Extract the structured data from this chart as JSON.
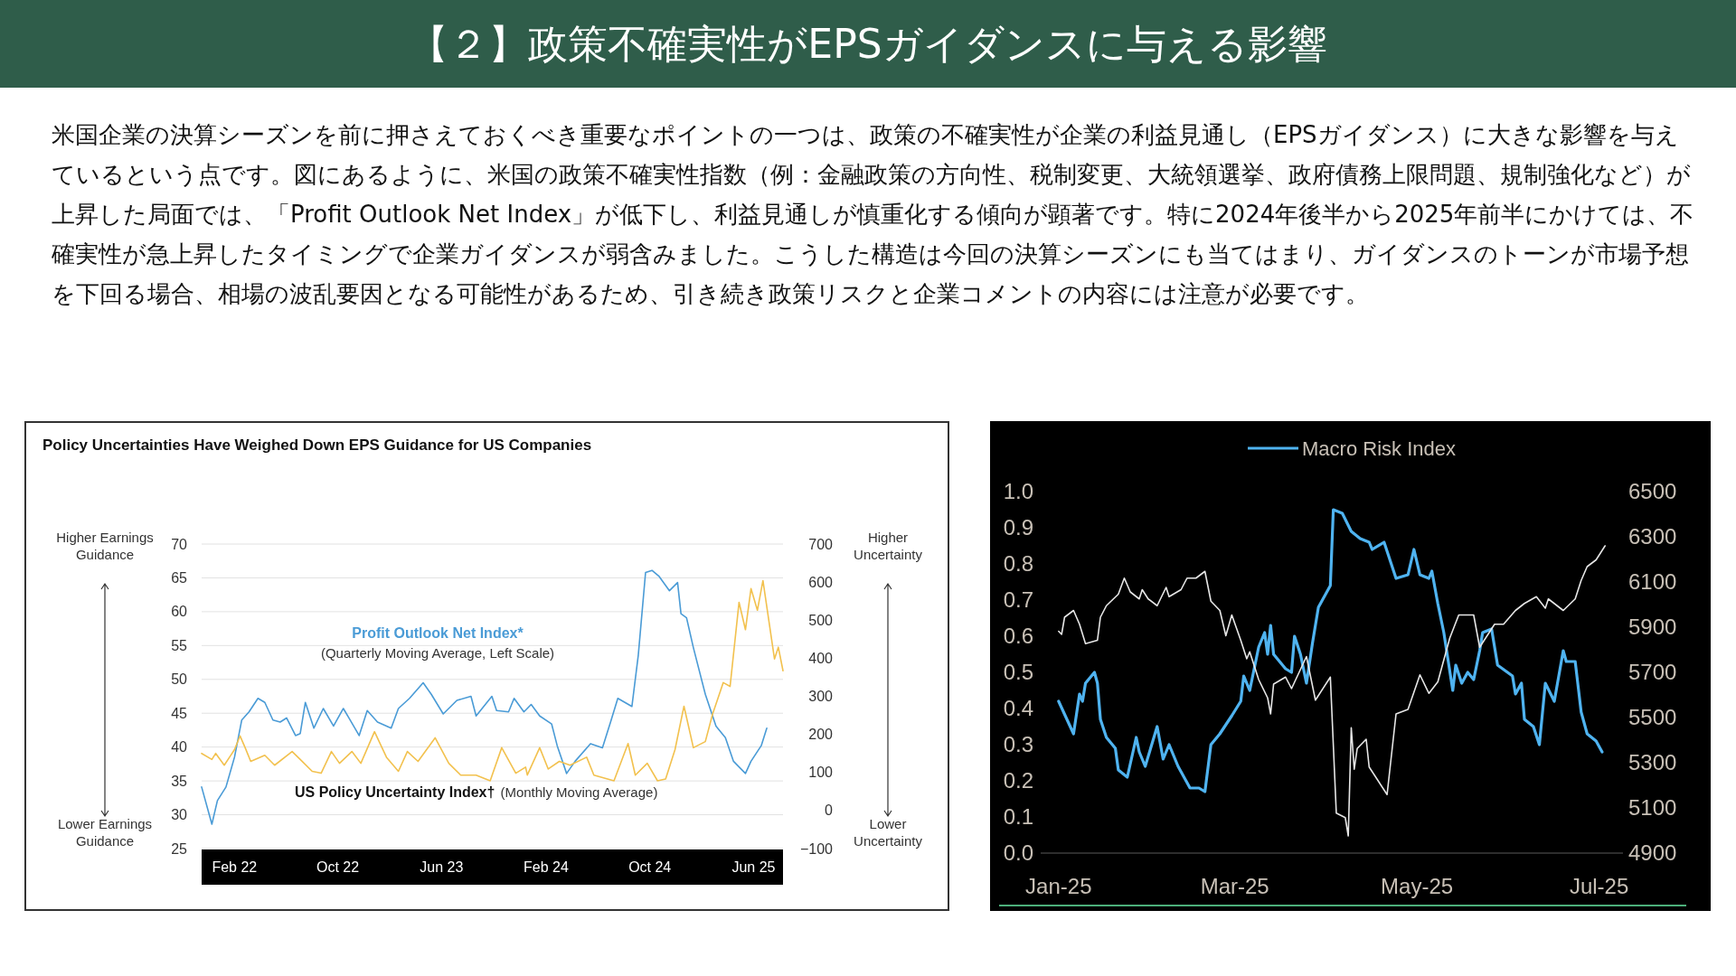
{
  "chart_data": [
    {
      "type": "other",
      "title": "【２】政策不確実性がEPSガイダンスに与える影響",
      "annotations": [
        "米国企業の決算シーズンを前に押さえておくべき重要なポイントの一つは、政策の不確実性が企業の利益見通し（EPSガイダンス）に大きな影響を与えているという点です。図にあるように、米国の政策不確実性指数（例：金融政策の方向性、税制変更、大統領選挙、政府債務上限問題、規制強化など）が上昇した局面では、「Profit Outlook Net Index」が低下し、利益見通しが慎重化する傾向が顕著です。特に2024年後半から2025年前半にかけては、不確実性が急上昇したタイミングで企業ガイダンスが弱含みました。こうした構造は今回の決算シーズンにも当てはまり、ガイダンスのトーンが市場予想を下回る場合、相場の波乱要因となる可能性があるため、引き続き政策リスクと企業コメントの内容には注意が必要です。"
      ]
    },
    {
      "type": "line",
      "title": "Policy Uncertainties Have Weighed Down EPS Guidance for US Companies",
      "xlim": [
        "2021-11-16",
        "2025-08-09"
      ],
      "xticks": [
        {
          "value": "2022-02",
          "label": "Feb 22"
        },
        {
          "value": "2022-10",
          "label": "Oct 22"
        },
        {
          "value": "2023-06",
          "label": "Jun 23"
        },
        {
          "value": "2024-02",
          "label": "Feb 24"
        },
        {
          "value": "2024-10",
          "label": "Oct 24"
        },
        {
          "value": "2025-06",
          "label": "Jun 25"
        }
      ],
      "ylim": [
        25,
        70
      ],
      "yticks": [
        25,
        30,
        35,
        40,
        45,
        50,
        55,
        60,
        65,
        70
      ],
      "y2lim": [
        -100,
        700
      ],
      "y2ticks": [
        {
          "value": -100,
          "label": "−100"
        },
        0,
        100,
        200,
        300,
        400,
        500,
        600,
        700
      ],
      "grid": "y",
      "legend": false,
      "annotations": [
        "(Quarterly Moving Average, Left Scale)",
        "(Monthly Moving Average)",
        "Higher Earnings Guidance",
        "Lower Earnings Guidance",
        "Higher Uncertainty",
        "Lower Uncertainty"
      ],
      "series": [
        {
          "name": "Profit Outlook Net Index*",
          "color": "#4a9bd6",
          "x": [
            "2021-11-16",
            "2021-12-10",
            "2021-12-23",
            "2022-01-12",
            "2022-02-01",
            "2022-02-18",
            "2022-03-07",
            "2022-03-28",
            "2022-04-13",
            "2022-05-02",
            "2022-05-19",
            "2022-06-03",
            "2022-06-24",
            "2022-07-05",
            "2022-07-17",
            "2022-08-06",
            "2022-08-28",
            "2022-09-21",
            "2022-10-14",
            "2022-10-27",
            "2022-11-20",
            "2022-12-09",
            "2023-01-02",
            "2023-02-03",
            "2023-02-20",
            "2023-03-18",
            "2023-04-19",
            "2023-05-08",
            "2023-06-05",
            "2023-07-07",
            "2023-08-09",
            "2023-08-21",
            "2023-09-27",
            "2023-10-08",
            "2023-11-05",
            "2023-11-18",
            "2023-12-11",
            "2023-12-28",
            "2024-01-17",
            "2024-02-14",
            "2024-02-27",
            "2024-03-20",
            "2024-04-09",
            "2024-05-15",
            "2024-06-12",
            "2024-07-01",
            "2024-07-18",
            "2024-08-20",
            "2024-09-04",
            "2024-09-21",
            "2024-10-06",
            "2024-10-23",
            "2024-11-16",
            "2024-12-05",
            "2024-12-13",
            "2024-12-26",
            "2025-01-11",
            "2025-02-08",
            "2025-03-05",
            "2025-03-27",
            "2025-04-15",
            "2025-05-13",
            "2025-05-26",
            "2025-06-19",
            "2025-07-02"
          ],
          "values": [
            34.1,
            28.6,
            32.1,
            34.1,
            38.5,
            44.0,
            45.2,
            47.2,
            46.6,
            44.0,
            43.7,
            44.3,
            41.7,
            42.0,
            46.6,
            42.8,
            45.7,
            43.1,
            45.7,
            44.3,
            41.7,
            45.4,
            43.7,
            42.8,
            45.7,
            47.2,
            49.5,
            47.8,
            44.9,
            46.9,
            47.5,
            44.6,
            47.5,
            45.4,
            45.2,
            47.2,
            45.2,
            46.3,
            44.6,
            43.4,
            40.2,
            36.1,
            37.9,
            40.5,
            39.9,
            43.7,
            47.2,
            46.0,
            53.6,
            65.8,
            66.1,
            65.2,
            63.1,
            64.3,
            59.7,
            59.1,
            54.7,
            47.8,
            43.1,
            41.4,
            37.9,
            36.1,
            37.9,
            40.2,
            42.8
          ]
        },
        {
          "name": "US Policy Uncertainty Index†",
          "color": "#f2c14e",
          "axis": "y2",
          "x": [
            "2021-11-16",
            "2021-12-10",
            "2021-12-19",
            "2022-01-08",
            "2022-02-01",
            "2022-02-14",
            "2022-02-26",
            "2022-03-11",
            "2022-04-13",
            "2022-05-06",
            "2022-06-16",
            "2022-07-05",
            "2022-08-02",
            "2022-08-23",
            "2022-09-16",
            "2022-10-05",
            "2022-11-03",
            "2022-11-24",
            "2022-12-26",
            "2023-01-23",
            "2023-02-20",
            "2023-03-13",
            "2023-04-07",
            "2023-05-17",
            "2023-06-18",
            "2023-07-16",
            "2023-08-21",
            "2023-09-23",
            "2023-10-20",
            "2023-11-22",
            "2023-12-15",
            "2023-12-19",
            "2024-01-17",
            "2024-02-06",
            "2024-03-03",
            "2024-03-28",
            "2024-05-06",
            "2024-05-23",
            "2024-07-09",
            "2024-08-11",
            "2024-08-28",
            "2024-09-25",
            "2024-10-19",
            "2024-11-07",
            "2024-11-29",
            "2024-12-20",
            "2025-01-11",
            "2025-02-08",
            "2025-02-25",
            "2025-03-22",
            "2025-04-07",
            "2025-04-28",
            "2025-05-13",
            "2025-05-26",
            "2025-06-10",
            "2025-06-23",
            "2025-07-20",
            "2025-07-29",
            "2025-08-09"
          ],
          "values": [
            150,
            134,
            150,
            119,
            160,
            196,
            165,
            129,
            145,
            119,
            155,
            134,
            103,
            98,
            155,
            124,
            155,
            124,
            207,
            140,
            103,
            155,
            129,
            191,
            124,
            93,
            93,
            78,
            165,
            98,
            114,
            93,
            165,
            109,
            129,
            119,
            140,
            93,
            78,
            176,
            93,
            124,
            78,
            83,
            160,
            274,
            165,
            181,
            253,
            336,
            326,
            547,
            475,
            583,
            526,
            604,
            398,
            429,
            367
          ]
        }
      ]
    },
    {
      "type": "line",
      "xlim": [
        "2024-12-26",
        "2025-07-09"
      ],
      "xticks": [
        {
          "value": "2025-01",
          "label": "Jan-25"
        },
        {
          "value": "2025-03",
          "label": "Mar-25"
        },
        {
          "value": "2025-05",
          "label": "May-25"
        },
        {
          "value": "2025-07",
          "label": "Jul-25"
        }
      ],
      "ylim": [
        0,
        1
      ],
      "yticks": [
        {
          "value": 0,
          "label": "0.0"
        },
        {
          "value": 0.1,
          "label": "0.1"
        },
        {
          "value": 0.2,
          "label": "0.2"
        },
        {
          "value": 0.3,
          "label": "0.3"
        },
        {
          "value": 0.4,
          "label": "0.4"
        },
        {
          "value": 0.5,
          "label": "0.5"
        },
        {
          "value": 0.6,
          "label": "0.6"
        },
        {
          "value": 0.7,
          "label": "0.7"
        },
        {
          "value": 0.8,
          "label": "0.8"
        },
        {
          "value": 0.9,
          "label": "0.9"
        },
        {
          "value": 1,
          "label": "1.0"
        }
      ],
      "y2lim": [
        4900,
        6500
      ],
      "y2ticks": [
        4900,
        5100,
        5300,
        5500,
        5700,
        5900,
        6100,
        6300,
        6500
      ],
      "legend": "top",
      "series": [
        {
          "name": "Macro Risk Index",
          "color": "#4fb3f0",
          "x": [
            "2025-01-01",
            "2025-01-06",
            "2025-01-08",
            "2025-01-09",
            "2025-01-10",
            "2025-01-13",
            "2025-01-14",
            "2025-01-15",
            "2025-01-17",
            "2025-01-20",
            "2025-01-21",
            "2025-01-24",
            "2025-01-27",
            "2025-01-28",
            "2025-01-30",
            "2025-02-03",
            "2025-02-05",
            "2025-02-07",
            "2025-02-10",
            "2025-02-14",
            "2025-02-17",
            "2025-02-19",
            "2025-02-21",
            "2025-02-24",
            "2025-02-28",
            "2025-03-03",
            "2025-03-04",
            "2025-03-06",
            "2025-03-09",
            "2025-03-11",
            "2025-03-12",
            "2025-03-13",
            "2025-03-14",
            "2025-03-18",
            "2025-03-20",
            "2025-03-21",
            "2025-03-23",
            "2025-03-25",
            "2025-03-27",
            "2025-03-29",
            "2025-04-02",
            "2025-04-03",
            "2025-04-06",
            "2025-04-09",
            "2025-04-12",
            "2025-04-15",
            "2025-04-16",
            "2025-04-20",
            "2025-04-22",
            "2025-04-24",
            "2025-04-28",
            "2025-04-30",
            "2025-05-02",
            "2025-05-05",
            "2025-05-06",
            "2025-05-08",
            "2025-05-10",
            "2025-05-13",
            "2025-05-14",
            "2025-05-16",
            "2025-05-18",
            "2025-05-20",
            "2025-05-22",
            "2025-05-23",
            "2025-05-26",
            "2025-05-28",
            "2025-06-02",
            "2025-06-03",
            "2025-06-05",
            "2025-06-06",
            "2025-06-09",
            "2025-06-11",
            "2025-06-13",
            "2025-06-16",
            "2025-06-19",
            "2025-06-20",
            "2025-06-23",
            "2025-06-25",
            "2025-06-27",
            "2025-06-30",
            "2025-07-02"
          ],
          "values": [
            0.42,
            0.33,
            0.44,
            0.42,
            0.47,
            0.5,
            0.47,
            0.37,
            0.32,
            0.29,
            0.23,
            0.21,
            0.32,
            0.28,
            0.24,
            0.35,
            0.26,
            0.3,
            0.24,
            0.18,
            0.18,
            0.17,
            0.3,
            0.33,
            0.38,
            0.42,
            0.49,
            0.45,
            0.57,
            0.61,
            0.55,
            0.63,
            0.55,
            0.51,
            0.5,
            0.6,
            0.55,
            0.47,
            0.58,
            0.68,
            0.74,
            0.95,
            0.94,
            0.89,
            0.87,
            0.86,
            0.84,
            0.86,
            0.81,
            0.76,
            0.77,
            0.84,
            0.77,
            0.76,
            0.78,
            0.69,
            0.61,
            0.45,
            0.52,
            0.47,
            0.5,
            0.48,
            0.56,
            0.61,
            0.62,
            0.52,
            0.49,
            0.44,
            0.47,
            0.37,
            0.35,
            0.3,
            0.47,
            0.42,
            0.56,
            0.53,
            0.53,
            0.39,
            0.33,
            0.31,
            0.28
          ]
        },
        {
          "color": "#e6e6e6",
          "axis": "y2",
          "x": [
            "2025-01-01",
            "2025-01-02",
            "2025-01-03",
            "2025-01-06",
            "2025-01-08",
            "2025-01-10",
            "2025-01-14",
            "2025-01-15",
            "2025-01-17",
            "2025-01-21",
            "2025-01-23",
            "2025-01-25",
            "2025-01-28",
            "2025-01-29",
            "2025-01-31",
            "2025-02-03",
            "2025-02-06",
            "2025-02-07",
            "2025-02-11",
            "2025-02-13",
            "2025-02-16",
            "2025-02-19",
            "2025-02-21",
            "2025-02-24",
            "2025-02-26",
            "2025-02-28",
            "2025-03-03",
            "2025-03-05",
            "2025-03-06",
            "2025-03-09",
            "2025-03-12",
            "2025-03-13",
            "2025-03-14",
            "2025-03-18",
            "2025-03-20",
            "2025-03-25",
            "2025-03-28",
            "2025-04-02",
            "2025-04-04",
            "2025-04-07",
            "2025-04-08",
            "2025-04-09",
            "2025-04-10",
            "2025-04-11",
            "2025-04-14",
            "2025-04-15",
            "2025-04-21",
            "2025-04-24",
            "2025-04-28",
            "2025-05-02",
            "2025-05-05",
            "2025-05-08",
            "2025-05-12",
            "2025-05-15",
            "2025-05-20",
            "2025-05-22",
            "2025-05-27",
            "2025-05-30",
            "2025-06-03",
            "2025-06-06",
            "2025-06-10",
            "2025-06-13",
            "2025-06-14",
            "2025-06-19",
            "2025-06-23",
            "2025-06-25",
            "2025-06-27",
            "2025-06-30",
            "2025-07-03"
          ],
          "values": [
            5882,
            5868,
            5944,
            5974,
            5913,
            5827,
            5842,
            5944,
            5995,
            6046,
            6117,
            6056,
            6025,
            6066,
            6025,
            5995,
            6076,
            6035,
            6066,
            6117,
            6117,
            6147,
            6015,
            5974,
            5862,
            5954,
            5842,
            5760,
            5791,
            5668,
            5587,
            5516,
            5648,
            5679,
            5628,
            5770,
            5577,
            5679,
            5077,
            5057,
            4976,
            5455,
            5271,
            5363,
            5404,
            5281,
            5159,
            5516,
            5536,
            5689,
            5607,
            5658,
            5852,
            5954,
            5954,
            5811,
            5913,
            5913,
            5974,
            6005,
            6035,
            5984,
            6025,
            5974,
            6025,
            6107,
            6168,
            6198,
            6260
          ]
        }
      ]
    }
  ]
}
